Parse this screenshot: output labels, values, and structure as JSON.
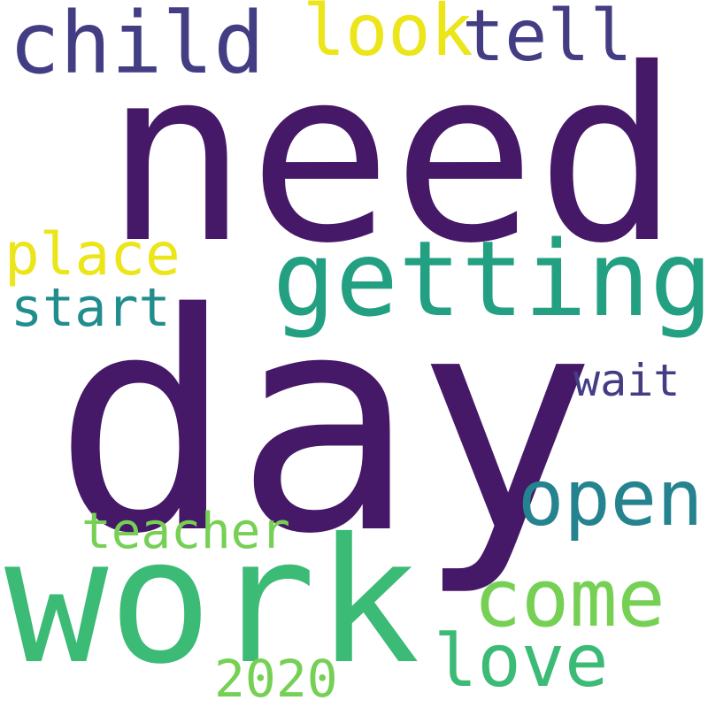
{
  "words": {
    "need": {
      "text": "need",
      "color": "#461868"
    },
    "day": {
      "text": "day",
      "color": "#461868"
    },
    "work": {
      "text": "work",
      "color": "#3bbb75"
    },
    "getting": {
      "text": "getting",
      "color": "#23a082"
    },
    "child": {
      "text": "child",
      "color": "#433d84"
    },
    "tell": {
      "text": "tell",
      "color": "#433d84"
    },
    "look": {
      "text": "look",
      "color": "#ebe51a"
    },
    "place": {
      "text": "place",
      "color": "#ebe51a"
    },
    "start": {
      "text": "start",
      "color": "#228d8d"
    },
    "wait": {
      "text": "wait",
      "color": "#433d84"
    },
    "open": {
      "text": "open",
      "color": "#24838e"
    },
    "teacher": {
      "text": "teacher",
      "color": "#75d054"
    },
    "come": {
      "text": "come",
      "color": "#75d054"
    },
    "love": {
      "text": "love",
      "color": "#3bbb75"
    },
    "2020": {
      "text": "2020",
      "color": "#75d054"
    }
  }
}
